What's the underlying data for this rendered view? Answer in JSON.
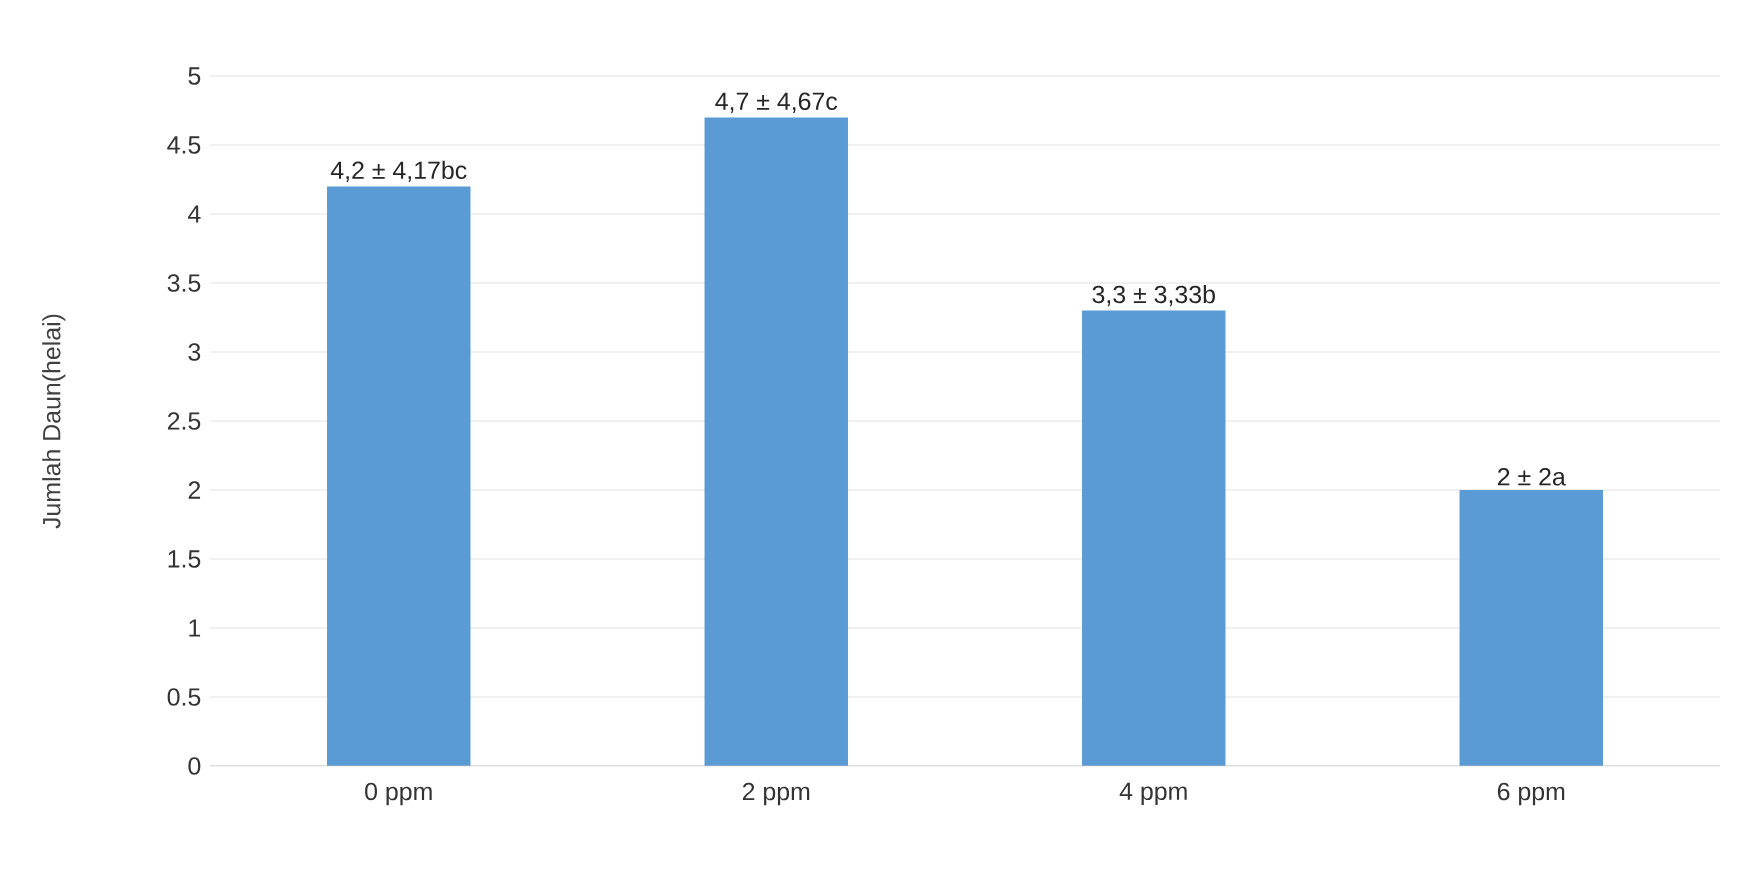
{
  "chart_data": {
    "type": "bar",
    "ylabel": "Jumlah Daun(helai)",
    "categories": [
      "0 ppm",
      "2 ppm",
      "4 ppm",
      "6 ppm"
    ],
    "values": [
      4.2,
      4.7,
      3.3,
      2
    ],
    "value_labels": [
      "4,2 ± 4,17bc",
      "4,7 ± 4,67c",
      "3,3 ± 3,33b",
      "2 ± 2a"
    ],
    "color": "#5b9bd5",
    "ylim": [
      0,
      5
    ],
    "yticks": [
      0,
      0.5,
      1,
      1.5,
      2,
      2.5,
      3,
      3.5,
      4,
      4.5,
      5
    ],
    "grid": "y"
  }
}
